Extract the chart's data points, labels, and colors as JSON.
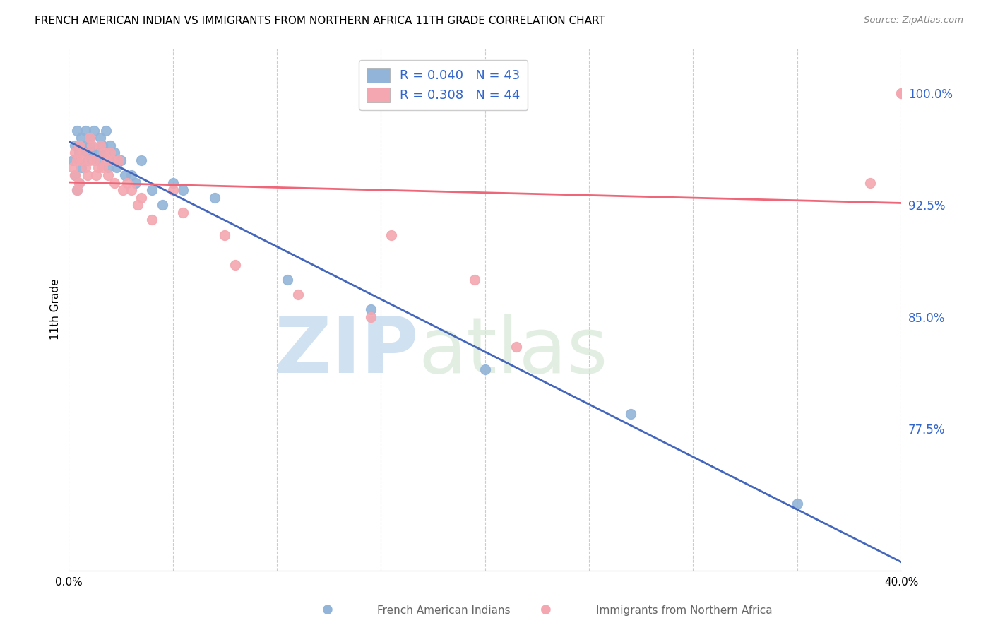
{
  "title": "FRENCH AMERICAN INDIAN VS IMMIGRANTS FROM NORTHERN AFRICA 11TH GRADE CORRELATION CHART",
  "source": "Source: ZipAtlas.com",
  "ylabel": "11th Grade",
  "y_ticks": [
    100.0,
    92.5,
    85.0,
    77.5
  ],
  "y_tick_labels": [
    "100.0%",
    "92.5%",
    "85.0%",
    "77.5%"
  ],
  "x_range": [
    0.0,
    40.0
  ],
  "y_range": [
    68.0,
    103.0
  ],
  "legend_r_blue": "0.040",
  "legend_n_blue": "43",
  "legend_r_pink": "0.308",
  "legend_n_pink": "44",
  "legend_label_blue": "French American Indians",
  "legend_label_pink": "Immigrants from Northern Africa",
  "blue_color": "#92B4D8",
  "pink_color": "#F4A7B0",
  "blue_line_color": "#4466BB",
  "pink_line_color": "#EE6677",
  "blue_scatter_x": [
    0.2,
    0.3,
    0.3,
    0.4,
    0.4,
    0.5,
    0.5,
    0.6,
    0.6,
    0.7,
    0.8,
    0.8,
    0.9,
    1.0,
    1.0,
    1.1,
    1.2,
    1.3,
    1.4,
    1.5,
    1.6,
    1.7,
    1.8,
    1.9,
    2.0,
    2.1,
    2.2,
    2.3,
    2.5,
    2.7,
    3.0,
    3.2,
    3.5,
    4.0,
    4.5,
    5.0,
    5.5,
    7.0,
    10.5,
    14.5,
    20.0,
    27.0,
    35.0
  ],
  "blue_scatter_y": [
    95.5,
    94.5,
    96.5,
    93.5,
    97.5,
    94.0,
    96.0,
    95.0,
    97.0,
    96.5,
    96.0,
    97.5,
    95.5,
    96.5,
    97.0,
    96.0,
    97.5,
    96.0,
    95.5,
    97.0,
    96.5,
    96.0,
    97.5,
    95.0,
    96.5,
    95.5,
    96.0,
    95.0,
    95.5,
    94.5,
    94.5,
    94.0,
    95.5,
    93.5,
    92.5,
    94.0,
    93.5,
    93.0,
    87.5,
    85.5,
    81.5,
    78.5,
    72.5
  ],
  "pink_scatter_x": [
    0.2,
    0.3,
    0.3,
    0.4,
    0.4,
    0.5,
    0.5,
    0.6,
    0.7,
    0.8,
    0.9,
    1.0,
    1.0,
    1.1,
    1.2,
    1.3,
    1.4,
    1.5,
    1.6,
    1.7,
    1.8,
    1.9,
    2.0,
    2.1,
    2.2,
    2.4,
    2.6,
    2.8,
    3.0,
    3.3,
    3.5,
    4.0,
    5.0,
    5.5,
    7.5,
    8.0,
    11.0,
    14.5,
    15.5,
    19.5,
    21.5,
    38.5,
    40.0,
    40.0
  ],
  "pink_scatter_y": [
    95.0,
    94.5,
    96.0,
    93.5,
    95.5,
    94.0,
    96.5,
    95.5,
    96.0,
    95.0,
    94.5,
    95.5,
    97.0,
    96.5,
    95.5,
    94.5,
    95.0,
    96.5,
    95.0,
    96.0,
    95.5,
    94.5,
    96.0,
    95.5,
    94.0,
    95.5,
    93.5,
    94.0,
    93.5,
    92.5,
    93.0,
    91.5,
    93.5,
    92.0,
    90.5,
    88.5,
    86.5,
    85.0,
    90.5,
    87.5,
    83.0,
    94.0,
    100.0,
    100.0
  ]
}
